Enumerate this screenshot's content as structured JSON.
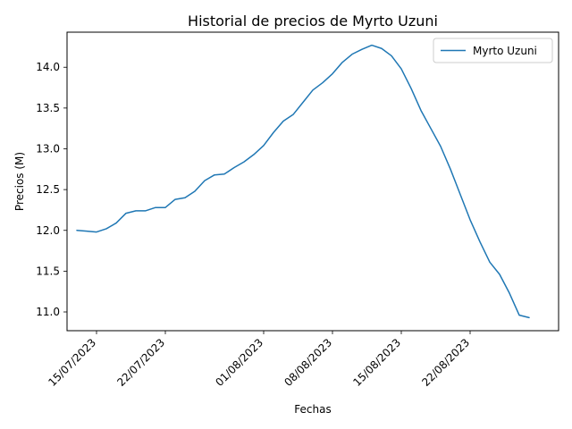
{
  "chart_data": {
    "type": "line",
    "title": "Historial de precios de Myrto Uzuni",
    "xlabel": "Fechas",
    "ylabel": "Precios (M)",
    "grid": false,
    "legend_position": "top-right",
    "x_tick_labels": [
      "15/07/2023",
      "22/07/2023",
      "01/08/2023",
      "08/08/2023",
      "15/08/2023",
      "22/08/2023"
    ],
    "y_ticks": [
      11.0,
      11.5,
      12.0,
      12.5,
      13.0,
      13.5,
      14.0
    ],
    "ylim": [
      10.77,
      14.43
    ],
    "xlim": [
      "2023-07-12",
      "2023-08-31"
    ],
    "series": [
      {
        "name": "Myrto Uzuni",
        "color": "#1f77b4",
        "x": [
          "2023-07-13",
          "2023-07-14",
          "2023-07-15",
          "2023-07-16",
          "2023-07-17",
          "2023-07-18",
          "2023-07-19",
          "2023-07-20",
          "2023-07-21",
          "2023-07-22",
          "2023-07-23",
          "2023-07-24",
          "2023-07-25",
          "2023-07-26",
          "2023-07-27",
          "2023-07-28",
          "2023-07-29",
          "2023-07-30",
          "2023-07-31",
          "2023-08-01",
          "2023-08-02",
          "2023-08-03",
          "2023-08-04",
          "2023-08-05",
          "2023-08-06",
          "2023-08-07",
          "2023-08-08",
          "2023-08-09",
          "2023-08-10",
          "2023-08-11",
          "2023-08-12",
          "2023-08-13",
          "2023-08-14",
          "2023-08-15",
          "2023-08-16",
          "2023-08-17",
          "2023-08-18",
          "2023-08-19",
          "2023-08-20",
          "2023-08-21",
          "2023-08-22",
          "2023-08-23",
          "2023-08-24",
          "2023-08-25",
          "2023-08-26",
          "2023-08-27",
          "2023-08-28"
        ],
        "y": [
          12.0,
          11.99,
          11.98,
          12.02,
          12.09,
          12.21,
          12.24,
          12.24,
          12.28,
          12.28,
          12.38,
          12.4,
          12.48,
          12.61,
          12.68,
          12.69,
          12.77,
          12.84,
          12.93,
          13.04,
          13.2,
          13.34,
          13.42,
          13.57,
          13.72,
          13.81,
          13.92,
          14.06,
          14.16,
          14.22,
          14.27,
          14.23,
          14.14,
          13.98,
          13.74,
          13.47,
          13.25,
          13.03,
          12.75,
          12.44,
          12.13,
          11.86,
          11.61,
          11.46,
          11.23,
          10.96,
          10.93
        ]
      }
    ]
  }
}
